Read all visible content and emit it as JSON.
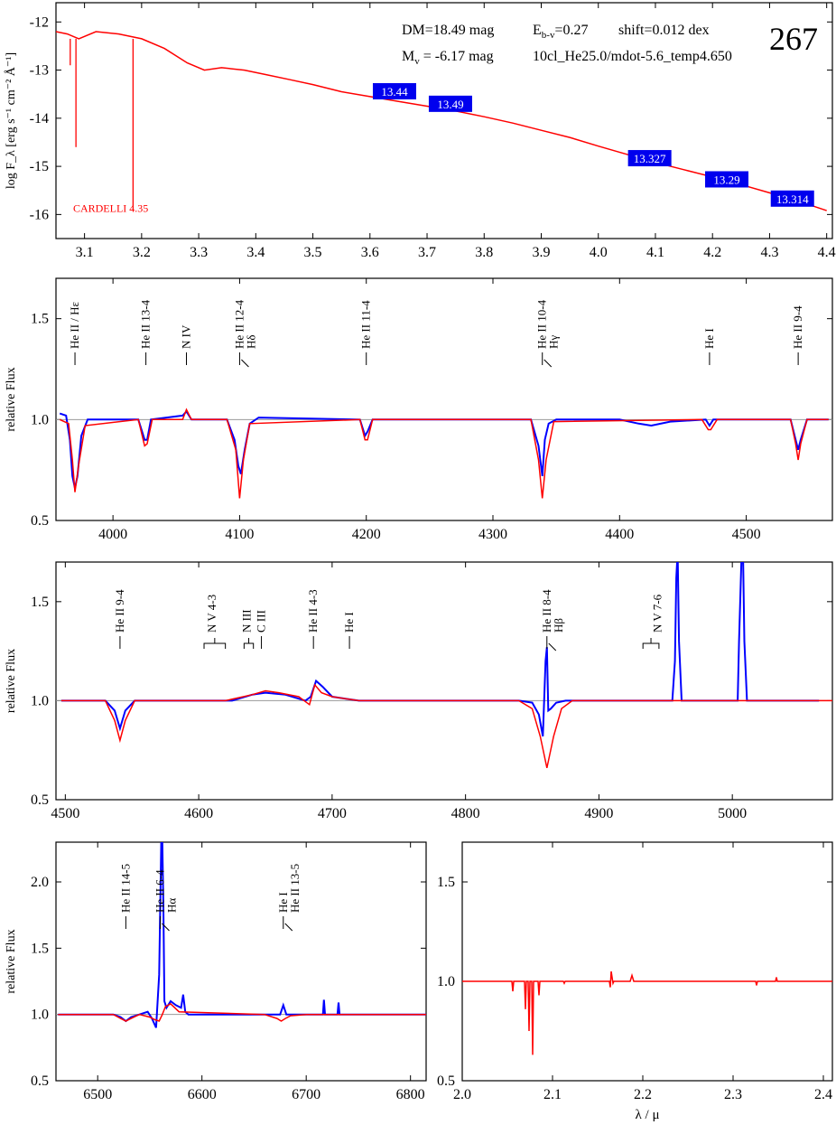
{
  "colors": {
    "model": "#ff0000",
    "observed": "#0000ff",
    "box": "#0000ee",
    "box_text": "#ffffff",
    "axis": "#000000",
    "ref": "#999999"
  },
  "header": {
    "dm": "DM=18.49 mag",
    "ebv_main": "E",
    "ebv_sub": "b-v",
    "ebv_rest": "=0.27",
    "shift": "shift=0.012 dex",
    "mv_main": "M",
    "mv_sub": "v",
    "mv_rest": " =  -6.17 mag",
    "model": "10cl_He25.0/mdot-5.6_temp4.650",
    "star_id": "267"
  },
  "chart_data": [
    {
      "id": "sed",
      "type": "line",
      "xlabel": "",
      "ylabel": "log F_λ [erg s⁻¹ cm⁻² Å⁻¹]",
      "xlim": [
        3.05,
        4.41
      ],
      "ylim": [
        -16.5,
        -11.6
      ],
      "xticks": [
        3.1,
        3.2,
        3.3,
        3.4,
        3.5,
        3.6,
        3.7,
        3.8,
        3.9,
        4.0,
        4.1,
        4.2,
        4.3,
        4.4
      ],
      "yticks": [
        -16,
        -15,
        -14,
        -13,
        -12
      ],
      "annotation": "CARDELLI 4.35",
      "photometry": [
        {
          "x": 3.643,
          "y": -13.44,
          "label": "13.44"
        },
        {
          "x": 3.741,
          "y": -13.7,
          "label": "13.49"
        },
        {
          "x": 4.09,
          "y": -14.83,
          "label": "13.327"
        },
        {
          "x": 4.225,
          "y": -15.27,
          "label": "13.29"
        },
        {
          "x": 4.34,
          "y": -15.67,
          "label": "13.314"
        }
      ],
      "series": [
        {
          "role": "model",
          "x": [
            3.05,
            3.07,
            3.09,
            3.12,
            3.16,
            3.2,
            3.24,
            3.28,
            3.31,
            3.34,
            3.38,
            3.42,
            3.46,
            3.5,
            3.55,
            3.6,
            3.65,
            3.7,
            3.75,
            3.8,
            3.85,
            3.9,
            3.95,
            4.0,
            4.05,
            4.1,
            4.15,
            4.2,
            4.25,
            4.3,
            4.35,
            4.4
          ],
          "y": [
            -12.2,
            -12.25,
            -12.35,
            -12.2,
            -12.25,
            -12.35,
            -12.55,
            -12.85,
            -13.0,
            -12.95,
            -13.0,
            -13.1,
            -13.2,
            -13.3,
            -13.45,
            -13.55,
            -13.65,
            -13.75,
            -13.85,
            -13.97,
            -14.1,
            -14.25,
            -14.4,
            -14.58,
            -14.75,
            -14.92,
            -15.07,
            -15.22,
            -15.38,
            -15.55,
            -15.72,
            -15.92
          ]
        }
      ]
    },
    {
      "id": "blue",
      "type": "line",
      "ylabel": "relative Flux",
      "xlim": [
        3955,
        4568
      ],
      "ylim": [
        0.5,
        1.7
      ],
      "xticks": [
        4000,
        4100,
        4200,
        4300,
        4400,
        4500
      ],
      "yticks": [
        0.5,
        1.0,
        1.5
      ],
      "reference": 1.0,
      "lines": [
        {
          "x": 3970,
          "label": "He II / Hε"
        },
        {
          "x": 4026,
          "label": "He II 13-4"
        },
        {
          "x": 4058,
          "label": "N IV"
        },
        {
          "x": 4100,
          "label": "He II 12-4",
          "label2": "Hδ"
        },
        {
          "x": 4200,
          "label": "He II 11-4"
        },
        {
          "x": 4339,
          "label": "He II 10-4",
          "label2": "Hγ"
        },
        {
          "x": 4471,
          "label": "He I"
        },
        {
          "x": 4541,
          "label": "He II 9-4"
        }
      ],
      "series": [
        {
          "role": "observed",
          "x": [
            3958,
            3963,
            3966,
            3968,
            3970,
            3972,
            3975,
            3980,
            4020,
            4025,
            4027,
            4030,
            4055,
            4058,
            4062,
            4090,
            4096,
            4099,
            4101,
            4104,
            4108,
            4115,
            4195,
            4199,
            4201,
            4205,
            4330,
            4336,
            4339,
            4341,
            4344,
            4350,
            4400,
            4415,
            4425,
            4440,
            4468,
            4471,
            4474,
            4535,
            4539,
            4541,
            4543,
            4548,
            4565
          ],
          "y": [
            1.03,
            1.02,
            0.9,
            0.72,
            0.66,
            0.72,
            0.92,
            1.0,
            1.0,
            0.9,
            0.9,
            1.0,
            1.02,
            1.04,
            1.0,
            1.0,
            0.9,
            0.77,
            0.73,
            0.85,
            0.98,
            1.01,
            1.0,
            0.92,
            0.94,
            1.0,
            1.0,
            0.87,
            0.72,
            0.9,
            0.98,
            1.0,
            1.0,
            0.98,
            0.97,
            0.99,
            1.0,
            0.97,
            1.0,
            1.0,
            0.9,
            0.85,
            0.9,
            1.0,
            1.0
          ]
        },
        {
          "role": "model",
          "x": [
            3958,
            3965,
            3968,
            3970,
            3973,
            3978,
            4020,
            4025,
            4027,
            4031,
            4055,
            4058,
            4062,
            4090,
            4097,
            4100,
            4103,
            4108,
            4195,
            4199,
            4201,
            4205,
            4330,
            4336,
            4339,
            4342,
            4348,
            4465,
            4470,
            4472,
            4477,
            4535,
            4539,
            4541,
            4543,
            4548,
            4565
          ],
          "y": [
            1.0,
            0.98,
            0.8,
            0.64,
            0.78,
            0.97,
            1.0,
            0.87,
            0.88,
            1.0,
            1.0,
            1.05,
            1.0,
            1.0,
            0.85,
            0.61,
            0.8,
            0.98,
            1.0,
            0.9,
            0.9,
            1.0,
            1.0,
            0.8,
            0.61,
            0.8,
            0.99,
            1.0,
            0.95,
            0.95,
            1.0,
            1.0,
            0.88,
            0.8,
            0.88,
            1.0,
            1.0
          ]
        }
      ]
    },
    {
      "id": "green",
      "type": "line",
      "ylabel": "relative Flux",
      "xlim": [
        4493,
        5075
      ],
      "ylim": [
        0.5,
        1.7
      ],
      "xticks": [
        4500,
        4600,
        4700,
        4800,
        4900,
        5000
      ],
      "yticks": [
        0.5,
        1.0,
        1.5
      ],
      "reference": 1.0,
      "lines": [
        {
          "x": 4541,
          "label": "He II 9-4"
        },
        {
          "x": 4610,
          "label": "N V 4-3",
          "bracket": [
            4604,
            4620
          ]
        },
        {
          "x": 4636,
          "label": "N III",
          "bracket": [
            4634,
            4641
          ]
        },
        {
          "x": 4647,
          "label": "C III"
        },
        {
          "x": 4686,
          "label": "He II 4-3"
        },
        {
          "x": 4713,
          "label": "He I"
        },
        {
          "x": 4861,
          "label": "He II 8-4",
          "label2": "Hβ"
        },
        {
          "x": 4944,
          "label": "N V 7-6",
          "bracket": [
            4933,
            4945
          ]
        }
      ],
      "series": [
        {
          "role": "observed",
          "x": [
            4497,
            4530,
            4537,
            4541,
            4545,
            4552,
            4600,
            4625,
            4640,
            4650,
            4665,
            4680,
            4684,
            4688,
            4693,
            4700,
            4720,
            4840,
            4850,
            4855,
            4858,
            4860,
            4861,
            4862,
            4864,
            4868,
            4875,
            4955,
            4957,
            4958,
            4959,
            4960,
            4962,
            5004,
            5005,
            5007,
            5008,
            5009,
            5011,
            5065
          ],
          "y": [
            1.0,
            1.0,
            0.95,
            0.86,
            0.95,
            1.0,
            1.0,
            1.0,
            1.03,
            1.04,
            1.03,
            1.0,
            1.02,
            1.1,
            1.07,
            1.02,
            1.0,
            1.0,
            0.99,
            0.93,
            0.82,
            1.2,
            1.27,
            0.95,
            0.96,
            0.99,
            1.0,
            1.0,
            1.2,
            1.62,
            1.75,
            1.3,
            1.0,
            1.0,
            1.3,
            1.75,
            1.75,
            1.3,
            1.0,
            1.0
          ]
        },
        {
          "role": "model",
          "x": [
            4497,
            4530,
            4537,
            4541,
            4545,
            4552,
            4620,
            4640,
            4650,
            4660,
            4675,
            4683,
            4687,
            4692,
            4700,
            4720,
            4840,
            4850,
            4856,
            4861,
            4866,
            4872,
            4880,
            5075
          ],
          "y": [
            1.0,
            1.0,
            0.9,
            0.8,
            0.9,
            1.0,
            1.0,
            1.03,
            1.05,
            1.04,
            1.02,
            0.98,
            1.08,
            1.04,
            1.02,
            1.0,
            1.0,
            0.96,
            0.82,
            0.66,
            0.82,
            0.96,
            1.0,
            1.0
          ]
        }
      ]
    },
    {
      "id": "red",
      "type": "line",
      "ylabel": "relative Flux",
      "xlim": [
        6460,
        6815
      ],
      "ylim": [
        0.5,
        2.3
      ],
      "xticks": [
        6500,
        6600,
        6700,
        6800
      ],
      "yticks": [
        0.5,
        1.0,
        1.5,
        2.0
      ],
      "reference": 1.0,
      "lines": [
        {
          "x": 6527,
          "label": "He II 14-5"
        },
        {
          "x": 6560,
          "label": "He II 6-4",
          "label2": "Hα"
        },
        {
          "x": 6678,
          "label": "He I",
          "label2": "He II 13-5"
        }
      ],
      "series": [
        {
          "role": "observed",
          "x": [
            6462,
            6515,
            6522,
            6527,
            6532,
            6540,
            6548,
            6552,
            6556,
            6559,
            6561,
            6562,
            6563,
            6564,
            6566,
            6570,
            6575,
            6580,
            6582,
            6584,
            6587,
            6600,
            6675,
            6678,
            6681,
            6700,
            6716,
            6717,
            6718,
            6720,
            6730,
            6731,
            6732,
            6734,
            6815
          ],
          "y": [
            1.0,
            1.0,
            0.98,
            0.95,
            0.98,
            1.0,
            1.02,
            0.97,
            0.9,
            1.3,
            2.3,
            2.3,
            1.8,
            1.1,
            1.05,
            1.1,
            1.07,
            1.05,
            1.15,
            1.02,
            1.0,
            1.0,
            1.0,
            1.07,
            1.0,
            1.0,
            1.0,
            1.11,
            1.0,
            1.0,
            1.0,
            1.09,
            1.0,
            1.0,
            1.0
          ]
        },
        {
          "role": "model",
          "x": [
            6462,
            6515,
            6522,
            6527,
            6532,
            6540,
            6550,
            6555,
            6559,
            6562,
            6565,
            6570,
            6578,
            6660,
            6672,
            6676,
            6680,
            6685,
            6700,
            6815
          ],
          "y": [
            1.0,
            1.0,
            0.97,
            0.95,
            0.97,
            1.0,
            0.98,
            0.96,
            0.95,
            1.0,
            1.06,
            1.08,
            1.02,
            1.0,
            0.97,
            0.95,
            0.97,
            0.99,
            1.0,
            1.0
          ]
        }
      ]
    },
    {
      "id": "ir",
      "type": "line",
      "xlabel": "λ / μ",
      "xlim": [
        2.0,
        2.41
      ],
      "ylim": [
        0.5,
        1.7
      ],
      "xticks": [
        2.0,
        2.1,
        2.2,
        2.3,
        2.4
      ],
      "yticks": [
        0.5,
        1.0,
        1.5
      ],
      "series": [
        {
          "role": "model",
          "x": [
            2.0,
            2.055,
            2.056,
            2.057,
            2.069,
            2.07,
            2.071,
            2.073,
            2.074,
            2.075,
            2.077,
            2.078,
            2.079,
            2.084,
            2.085,
            2.086,
            2.112,
            2.113,
            2.114,
            2.163,
            2.164,
            2.165,
            2.167,
            2.168,
            2.169,
            2.186,
            2.188,
            2.19,
            2.325,
            2.326,
            2.327,
            2.347,
            2.348,
            2.349,
            2.41
          ],
          "y": [
            1.0,
            1.0,
            0.95,
            1.0,
            1.0,
            0.86,
            1.0,
            1.0,
            0.75,
            1.0,
            1.0,
            0.63,
            1.0,
            1.0,
            0.93,
            1.0,
            1.0,
            0.99,
            1.0,
            1.0,
            0.97,
            1.05,
            0.99,
            1.0,
            1.0,
            1.0,
            1.03,
            1.0,
            1.0,
            0.98,
            1.0,
            1.0,
            1.02,
            1.0,
            1.0
          ]
        }
      ]
    }
  ]
}
